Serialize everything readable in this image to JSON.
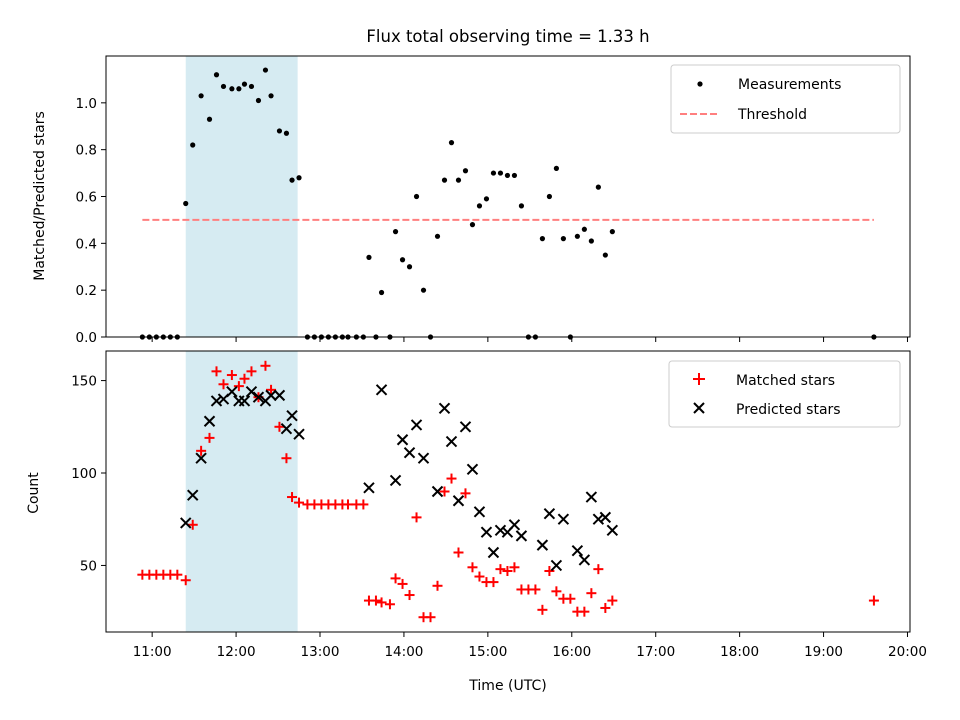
{
  "chart_data": [
    {
      "type": "scatter",
      "title": "Flux total observing time = 1.33 h",
      "xlabel": "",
      "ylabel": "Matched/Predicted stars",
      "xlim_hours": [
        10.45,
        20.03
      ],
      "ylim": [
        0,
        1.2
      ],
      "yticks": [
        0.0,
        0.2,
        0.4,
        0.6,
        0.8,
        1.0
      ],
      "ytick_labels": [
        "0.0",
        "0.2",
        "0.4",
        "0.6",
        "0.8",
        "1.0"
      ],
      "shaded_span": {
        "start": "11:24",
        "end": "12:44",
        "color": "#add8e6"
      },
      "legend_position": "upper right",
      "threshold": {
        "name": "Threshold",
        "value": 0.5,
        "x_start": "10:53",
        "x_end": "19:36",
        "color": "#ff7f7f",
        "style": "dashed"
      },
      "measurements": {
        "name": "Measurements",
        "color": "#000000",
        "points": [
          [
            "10:53",
            0
          ],
          [
            "10:58",
            0
          ],
          [
            "11:03",
            0
          ],
          [
            "11:08",
            0
          ],
          [
            "11:13",
            0
          ],
          [
            "11:18",
            0
          ],
          [
            "11:24",
            0.57
          ],
          [
            "11:29",
            0.82
          ],
          [
            "11:35",
            1.03
          ],
          [
            "11:41",
            0.93
          ],
          [
            "11:46",
            1.12
          ],
          [
            "11:51",
            1.07
          ],
          [
            "11:57",
            1.06
          ],
          [
            "12:02",
            1.06
          ],
          [
            "12:06",
            1.08
          ],
          [
            "12:11",
            1.07
          ],
          [
            "12:16",
            1.01
          ],
          [
            "12:21",
            1.14
          ],
          [
            "12:25",
            1.03
          ],
          [
            "12:31",
            0.88
          ],
          [
            "12:36",
            0.87
          ],
          [
            "12:40",
            0.67
          ],
          [
            "12:45",
            0.68
          ],
          [
            "12:51",
            0
          ],
          [
            "12:56",
            0
          ],
          [
            "13:01",
            0
          ],
          [
            "13:06",
            0
          ],
          [
            "13:11",
            0
          ],
          [
            "13:16",
            0
          ],
          [
            "13:20",
            0
          ],
          [
            "13:26",
            0
          ],
          [
            "13:31",
            0
          ],
          [
            "13:35",
            0.34
          ],
          [
            "13:40",
            0
          ],
          [
            "13:44",
            0.19
          ],
          [
            "13:50",
            0
          ],
          [
            "13:54",
            0.45
          ],
          [
            "13:59",
            0.33
          ],
          [
            "14:04",
            0.3
          ],
          [
            "14:09",
            0.6
          ],
          [
            "14:14",
            0.2
          ],
          [
            "14:19",
            0
          ],
          [
            "14:24",
            0.43
          ],
          [
            "14:29",
            0.67
          ],
          [
            "14:34",
            0.83
          ],
          [
            "14:39",
            0.67
          ],
          [
            "14:44",
            0.71
          ],
          [
            "14:49",
            0.48
          ],
          [
            "14:54",
            0.56
          ],
          [
            "14:59",
            0.59
          ],
          [
            "15:04",
            0.7
          ],
          [
            "15:09",
            0.7
          ],
          [
            "15:14",
            0.69
          ],
          [
            "15:19",
            0.69
          ],
          [
            "15:24",
            0.56
          ],
          [
            "15:29",
            0
          ],
          [
            "15:34",
            0
          ],
          [
            "15:39",
            0.42
          ],
          [
            "15:44",
            0.6
          ],
          [
            "15:49",
            0.72
          ],
          [
            "15:54",
            0.42
          ],
          [
            "15:59",
            0
          ],
          [
            "16:04",
            0.43
          ],
          [
            "16:09",
            0.46
          ],
          [
            "16:14",
            0.41
          ],
          [
            "16:19",
            0.64
          ],
          [
            "16:24",
            0.35
          ],
          [
            "16:29",
            0.45
          ],
          [
            "19:36",
            0
          ]
        ]
      }
    },
    {
      "type": "scatter",
      "title": "",
      "xlabel": "Time (UTC)",
      "ylabel": "Count",
      "xlim_hours": [
        10.45,
        20.03
      ],
      "ylim": [
        14,
        166
      ],
      "yticks": [
        50,
        100,
        150
      ],
      "ytick_labels": [
        "50",
        "100",
        "150"
      ],
      "xtick_labels": [
        "11:00",
        "12:00",
        "13:00",
        "14:00",
        "15:00",
        "16:00",
        "17:00",
        "18:00",
        "19:00",
        "20:00"
      ],
      "shaded_span": {
        "start": "11:24",
        "end": "12:44",
        "color": "#add8e6"
      },
      "legend_position": "upper right",
      "matched": {
        "name": "Matched stars",
        "color": "#ff0000",
        "marker": "+",
        "points": [
          [
            "10:53",
            45
          ],
          [
            "10:58",
            45
          ],
          [
            "11:03",
            45
          ],
          [
            "11:08",
            45
          ],
          [
            "11:13",
            45
          ],
          [
            "11:18",
            45
          ],
          [
            "11:24",
            42
          ],
          [
            "11:29",
            72
          ],
          [
            "11:35",
            112
          ],
          [
            "11:41",
            119
          ],
          [
            "11:46",
            155
          ],
          [
            "11:51",
            148
          ],
          [
            "11:57",
            153
          ],
          [
            "12:02",
            147
          ],
          [
            "12:06",
            151
          ],
          [
            "12:11",
            155
          ],
          [
            "12:16",
            141
          ],
          [
            "12:21",
            158
          ],
          [
            "12:25",
            145
          ],
          [
            "12:31",
            125
          ],
          [
            "12:36",
            108
          ],
          [
            "12:40",
            87
          ],
          [
            "12:45",
            84
          ],
          [
            "12:51",
            83
          ],
          [
            "12:56",
            83
          ],
          [
            "13:01",
            83
          ],
          [
            "13:06",
            83
          ],
          [
            "13:11",
            83
          ],
          [
            "13:16",
            83
          ],
          [
            "13:20",
            83
          ],
          [
            "13:26",
            83
          ],
          [
            "13:31",
            83
          ],
          [
            "13:35",
            31
          ],
          [
            "13:40",
            31
          ],
          [
            "13:44",
            30
          ],
          [
            "13:50",
            29
          ],
          [
            "13:54",
            43
          ],
          [
            "13:59",
            40
          ],
          [
            "14:04",
            34
          ],
          [
            "14:09",
            76
          ],
          [
            "14:14",
            22
          ],
          [
            "14:19",
            22
          ],
          [
            "14:24",
            39
          ],
          [
            "14:29",
            90
          ],
          [
            "14:34",
            97
          ],
          [
            "14:39",
            57
          ],
          [
            "14:44",
            89
          ],
          [
            "14:49",
            49
          ],
          [
            "14:54",
            44
          ],
          [
            "14:59",
            41
          ],
          [
            "15:04",
            41
          ],
          [
            "15:09",
            48
          ],
          [
            "15:14",
            47
          ],
          [
            "15:19",
            49
          ],
          [
            "15:24",
            37
          ],
          [
            "15:29",
            37
          ],
          [
            "15:34",
            37
          ],
          [
            "15:39",
            26
          ],
          [
            "15:44",
            47
          ],
          [
            "15:49",
            36
          ],
          [
            "15:54",
            32
          ],
          [
            "15:59",
            32
          ],
          [
            "16:04",
            25
          ],
          [
            "16:09",
            25
          ],
          [
            "16:14",
            35
          ],
          [
            "16:19",
            48
          ],
          [
            "16:24",
            27
          ],
          [
            "16:29",
            31
          ],
          [
            "19:36",
            31
          ]
        ]
      },
      "predicted": {
        "name": "Predicted stars",
        "color": "#000000",
        "marker": "x",
        "points": [
          [
            "11:24",
            73
          ],
          [
            "11:29",
            88
          ],
          [
            "11:35",
            108
          ],
          [
            "11:41",
            128
          ],
          [
            "11:46",
            139
          ],
          [
            "11:51",
            140
          ],
          [
            "11:57",
            144
          ],
          [
            "12:02",
            139
          ],
          [
            "12:06",
            139
          ],
          [
            "12:11",
            144
          ],
          [
            "12:16",
            141
          ],
          [
            "12:21",
            139
          ],
          [
            "12:25",
            142
          ],
          [
            "12:31",
            142
          ],
          [
            "12:36",
            124
          ],
          [
            "12:40",
            131
          ],
          [
            "12:45",
            121
          ],
          [
            "13:35",
            92
          ],
          [
            "13:44",
            145
          ],
          [
            "13:54",
            96
          ],
          [
            "13:59",
            118
          ],
          [
            "14:04",
            111
          ],
          [
            "14:09",
            126
          ],
          [
            "14:14",
            108
          ],
          [
            "14:24",
            90
          ],
          [
            "14:29",
            135
          ],
          [
            "14:34",
            117
          ],
          [
            "14:39",
            85
          ],
          [
            "14:44",
            125
          ],
          [
            "14:49",
            102
          ],
          [
            "14:54",
            79
          ],
          [
            "14:59",
            68
          ],
          [
            "15:04",
            57
          ],
          [
            "15:09",
            69
          ],
          [
            "15:14",
            68
          ],
          [
            "15:19",
            72
          ],
          [
            "15:24",
            66
          ],
          [
            "15:39",
            61
          ],
          [
            "15:44",
            78
          ],
          [
            "15:49",
            50
          ],
          [
            "15:54",
            75
          ],
          [
            "16:04",
            58
          ],
          [
            "16:09",
            53
          ],
          [
            "16:14",
            87
          ],
          [
            "16:19",
            75
          ],
          [
            "16:24",
            76
          ],
          [
            "16:29",
            69
          ]
        ]
      }
    }
  ]
}
